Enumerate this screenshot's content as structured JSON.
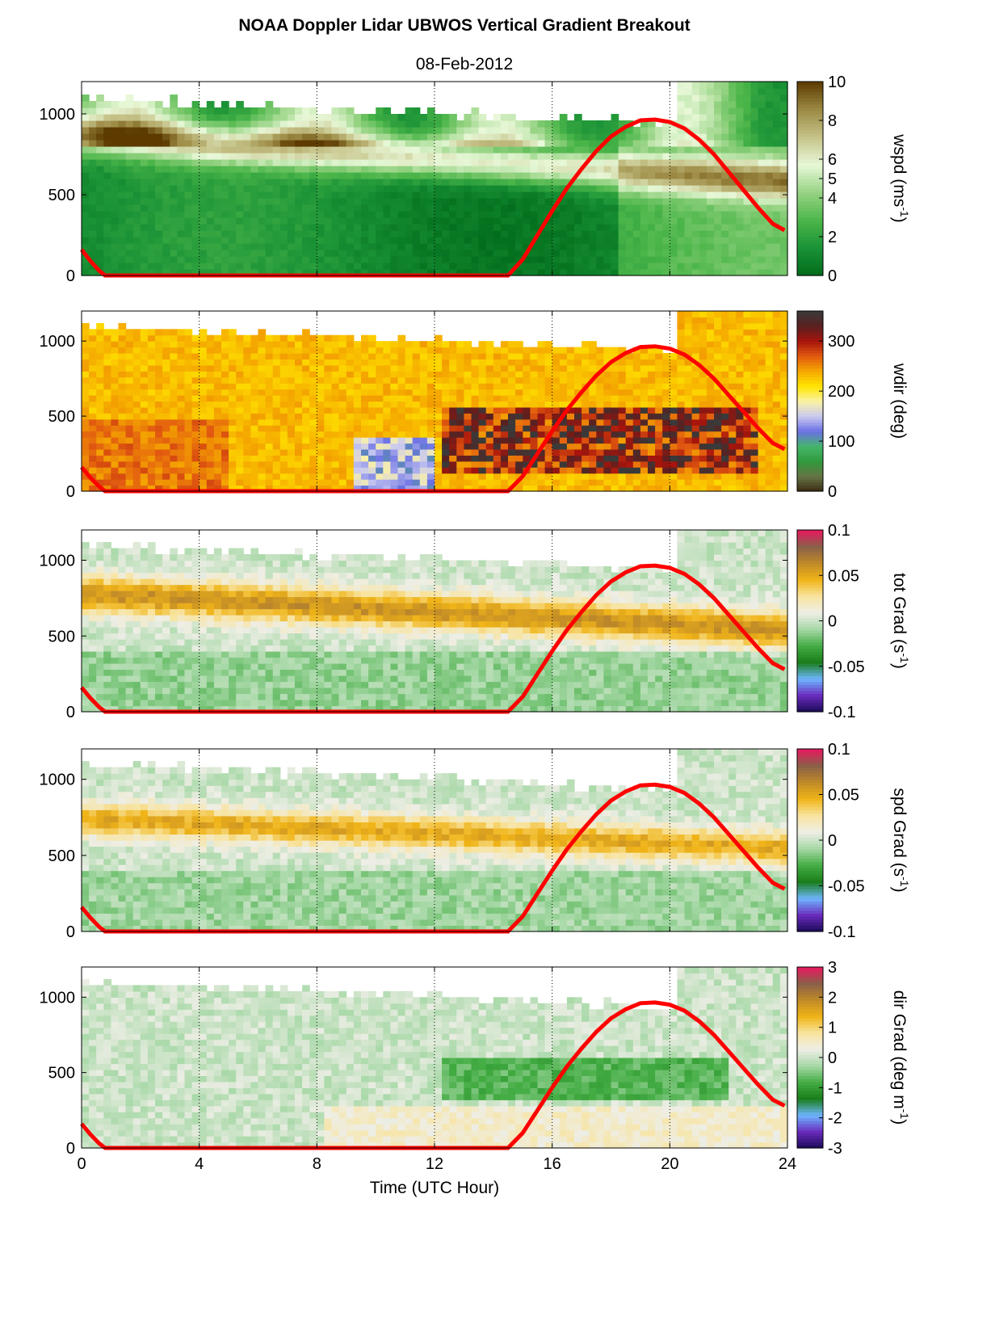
{
  "title": "NOAA Doppler Lidar  UBWOS  Vertical Gradient Breakout",
  "date": "08-Feb-2012",
  "xlabel": "Time (UTC Hour)",
  "xlim": [
    0,
    24
  ],
  "x_ticks": [
    0,
    4,
    8,
    12,
    16,
    20,
    24
  ],
  "ylim": [
    0,
    1200
  ],
  "y_ticks": [
    0,
    500,
    1000
  ],
  "overlay_curve": {
    "color": "#ff0000",
    "x": [
      0,
      0.3,
      0.6,
      0.8,
      14.5,
      15,
      15.5,
      16,
      16.5,
      17,
      17.5,
      18,
      18.5,
      19,
      19.5,
      20,
      20.5,
      21,
      21.5,
      22,
      22.5,
      23,
      23.5,
      23.9
    ],
    "y": [
      160,
      90,
      30,
      0,
      0,
      100,
      250,
      400,
      540,
      660,
      770,
      860,
      920,
      960,
      965,
      950,
      910,
      840,
      750,
      640,
      530,
      420,
      320,
      280
    ]
  },
  "chart_data": [
    {
      "type": "heatmap",
      "variable": "wspd",
      "ylabel_main": "wspd (ms",
      "ylabel_sup": "-1",
      "ylabel_end": ")",
      "colorbar_ticks": [
        "0",
        "2",
        "4",
        "5",
        "6",
        "8",
        "10"
      ],
      "colorbar_tick_values": [
        0,
        2,
        4,
        5,
        6,
        8,
        10
      ],
      "clim": [
        0,
        10
      ],
      "colormap": [
        "#006b1b",
        "#1a9236",
        "#4cb64a",
        "#96d383",
        "#e8f8d8",
        "#c6c389",
        "#9c8a44",
        "#5c3a00"
      ]
    },
    {
      "type": "heatmap",
      "variable": "wdir",
      "ylabel_main": "wdir (deg)",
      "ylabel_sup": "",
      "ylabel_end": "",
      "colorbar_ticks": [
        "0",
        "100",
        "200",
        "300"
      ],
      "colorbar_tick_values": [
        0,
        100,
        200,
        300
      ],
      "clim": [
        0,
        360
      ],
      "colormap": [
        "#3a2a12",
        "#667445",
        "#2f9a3d",
        "#44b66b",
        "#6a70e4",
        "#c9c9f0",
        "#fbf2a6",
        "#ffe500",
        "#f5a800",
        "#e25a10",
        "#a8140c",
        "#5a2020",
        "#3a3a3a"
      ]
    },
    {
      "type": "heatmap",
      "variable": "tot Grad",
      "ylabel_main": "tot Grad (s",
      "ylabel_sup": "-1",
      "ylabel_end": ")",
      "colorbar_ticks": [
        "-0.1",
        "-0.05",
        "0",
        "0.05",
        "0.1"
      ],
      "colorbar_tick_values": [
        -0.1,
        -0.05,
        0,
        0.05,
        0.1
      ],
      "clim": [
        -0.1,
        0.1
      ],
      "colormap": [
        "#1a0a55",
        "#6a2bbd",
        "#6eb6ff",
        "#1a7d1a",
        "#44ad44",
        "#a6d8a6",
        "#eeeee6",
        "#f8e4a0",
        "#f0b418",
        "#c08a28",
        "#8a6048",
        "#e81860"
      ]
    },
    {
      "type": "heatmap",
      "variable": "spd Grad",
      "ylabel_main": "spd Grad (s",
      "ylabel_sup": "-1",
      "ylabel_end": ")",
      "colorbar_ticks": [
        "-0.1",
        "-0.05",
        "0",
        "0.05",
        "0.1"
      ],
      "colorbar_tick_values": [
        -0.1,
        -0.05,
        0,
        0.05,
        0.1
      ],
      "clim": [
        -0.1,
        0.1
      ],
      "colormap": [
        "#1a0a55",
        "#6a2bbd",
        "#6eb6ff",
        "#1a7d1a",
        "#44ad44",
        "#a6d8a6",
        "#eeeee6",
        "#f8e4a0",
        "#f0b418",
        "#c08a28",
        "#8a6048",
        "#e81860"
      ]
    },
    {
      "type": "heatmap",
      "variable": "dir Grad",
      "ylabel_main": "dir Grad (deg m",
      "ylabel_sup": "-1",
      "ylabel_end": ")",
      "colorbar_ticks": [
        "-3",
        "-2",
        "-1",
        "0",
        "1",
        "2",
        "3"
      ],
      "colorbar_tick_values": [
        -3,
        -2,
        -1,
        0,
        1,
        2,
        3
      ],
      "clim": [
        -3,
        3
      ],
      "colormap": [
        "#1a0a55",
        "#6a2bbd",
        "#6eb6ff",
        "#1a7d1a",
        "#44ad44",
        "#a6d8a6",
        "#eeeee6",
        "#f8e4a0",
        "#f0b418",
        "#c08a28",
        "#8a6048",
        "#e81860"
      ]
    }
  ]
}
